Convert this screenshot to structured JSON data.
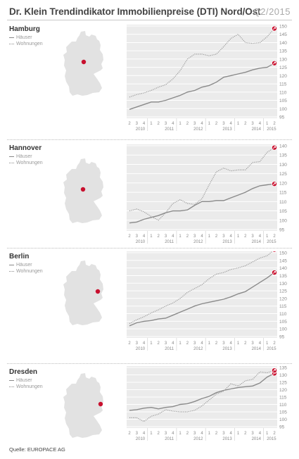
{
  "header": {
    "title": "Dr. Klein Trendindikator Immobilienpreise (DTI) Nord/Ost",
    "period": "Q2/2015"
  },
  "source": "Quelle: EUROPACE AG",
  "colors": {
    "accent": "#c8102e",
    "haeuser_line": "#8a8a8a",
    "wohnungen_line": "#9a9a9a",
    "grid": "#ffffff",
    "plot_bg": "#ebebeb",
    "map": "#e2e2e2"
  },
  "legend": {
    "haeuser": "Häuser",
    "wohnungen": "Wohnungen"
  },
  "panels": [
    {
      "city": "Hamburg"
    },
    {
      "city": "Hannover"
    },
    {
      "city": "Berlin"
    },
    {
      "city": "Dresden"
    }
  ],
  "chart_data": [
    {
      "type": "line",
      "title": "Hamburg",
      "x_quarter_labels": [
        "2",
        "3",
        "4",
        "1",
        "2",
        "3",
        "4",
        "1",
        "2",
        "3",
        "4",
        "1",
        "2",
        "3",
        "4",
        "1",
        "2",
        "3",
        "4",
        "1",
        "2"
      ],
      "x_year_labels": [
        "2010",
        "2011",
        "2012",
        "2013",
        "2014",
        "2015"
      ],
      "ylim": [
        95,
        150
      ],
      "yticks": [
        95,
        100,
        105,
        110,
        115,
        120,
        125,
        130,
        135,
        140,
        145,
        150
      ],
      "series": [
        {
          "name": "Häuser",
          "style": "solid",
          "values": [
            99.5,
            101,
            102.5,
            104,
            104,
            105,
            106.5,
            108,
            110,
            111,
            113,
            114,
            116,
            119,
            120,
            121,
            122,
            123.5,
            124.5,
            125,
            127.5
          ]
        },
        {
          "name": "Wohnungen",
          "style": "dotted",
          "values": [
            107,
            108.5,
            109.5,
            111,
            113,
            114.5,
            118,
            123,
            130,
            133,
            133,
            132,
            133,
            137.5,
            142.5,
            145,
            140,
            139.5,
            140,
            143.5,
            148.5
          ]
        }
      ]
    },
    {
      "type": "line",
      "title": "Hannover",
      "x_quarter_labels": [
        "2",
        "3",
        "4",
        "1",
        "2",
        "3",
        "4",
        "1",
        "2",
        "3",
        "4",
        "1",
        "2",
        "3",
        "4",
        "1",
        "2",
        "3",
        "4",
        "1",
        "2"
      ],
      "x_year_labels": [
        "2010",
        "2011",
        "2012",
        "2013",
        "2014",
        "2015"
      ],
      "ylim": [
        95,
        140
      ],
      "yticks": [
        95,
        100,
        105,
        110,
        115,
        120,
        125,
        130,
        135,
        140
      ],
      "series": [
        {
          "name": "Häuser",
          "style": "solid",
          "values": [
            98.5,
            99,
            100.5,
            101.5,
            102.5,
            104,
            105,
            105,
            105.5,
            108,
            110,
            110,
            110.5,
            110.5,
            112,
            113.5,
            115,
            117,
            118.5,
            119,
            119.5
          ]
        },
        {
          "name": "Wohnungen",
          "style": "dotted",
          "values": [
            105,
            106,
            104.5,
            102,
            100,
            104,
            109,
            111,
            109,
            108.5,
            111.5,
            119,
            126,
            128,
            126.5,
            127,
            127,
            131,
            131.5,
            136.5,
            139
          ]
        }
      ]
    },
    {
      "type": "line",
      "title": "Berlin",
      "x_quarter_labels": [
        "2",
        "3",
        "4",
        "1",
        "2",
        "3",
        "4",
        "1",
        "2",
        "3",
        "4",
        "1",
        "2",
        "3",
        "4",
        "1",
        "2",
        "3",
        "4",
        "1",
        "2"
      ],
      "x_year_labels": [
        "2010",
        "2011",
        "2012",
        "2013",
        "2014",
        "2015"
      ],
      "ylim": [
        95,
        150
      ],
      "yticks": [
        95,
        100,
        105,
        110,
        115,
        120,
        125,
        130,
        135,
        140,
        145,
        150
      ],
      "series": [
        {
          "name": "Häuser",
          "style": "solid",
          "values": [
            102,
            104,
            105,
            105.5,
            106.5,
            107,
            109,
            111,
            113,
            115,
            116.5,
            117.5,
            118.5,
            119.5,
            121,
            123,
            124.5,
            127.5,
            130.5,
            133.5,
            137
          ]
        },
        {
          "name": "Wohnungen",
          "style": "dotted",
          "values": [
            103.5,
            106,
            108,
            110.5,
            112.5,
            115,
            117,
            120,
            124,
            126.5,
            129,
            133,
            136,
            137,
            139,
            140,
            141.5,
            144,
            146.5,
            148,
            152
          ]
        }
      ]
    },
    {
      "type": "line",
      "title": "Dresden",
      "x_quarter_labels": [
        "2",
        "3",
        "4",
        "1",
        "2",
        "3",
        "4",
        "1",
        "2",
        "3",
        "4",
        "1",
        "2",
        "3",
        "4",
        "1",
        "2",
        "3",
        "4",
        "1",
        "2"
      ],
      "x_year_labels": [
        "2010",
        "2011",
        "2012",
        "2013",
        "2014",
        "2015"
      ],
      "ylim": [
        95,
        135
      ],
      "yticks": [
        95,
        100,
        105,
        110,
        115,
        120,
        125,
        130,
        135
      ],
      "series": [
        {
          "name": "Häuser",
          "style": "solid",
          "values": [
            106,
            106.5,
            107.5,
            108,
            107,
            108,
            108.5,
            110,
            110.5,
            112,
            114,
            115.5,
            118,
            119.5,
            120.5,
            121.5,
            122,
            122.5,
            124.5,
            128.5,
            131
          ]
        },
        {
          "name": "Wohnungen",
          "style": "dotted",
          "values": [
            101,
            101,
            98.5,
            102,
            103.5,
            106.5,
            105.5,
            105,
            105,
            106,
            109,
            113,
            117,
            119,
            124,
            122.5,
            126,
            127,
            132,
            131.5,
            133
          ]
        }
      ]
    }
  ]
}
